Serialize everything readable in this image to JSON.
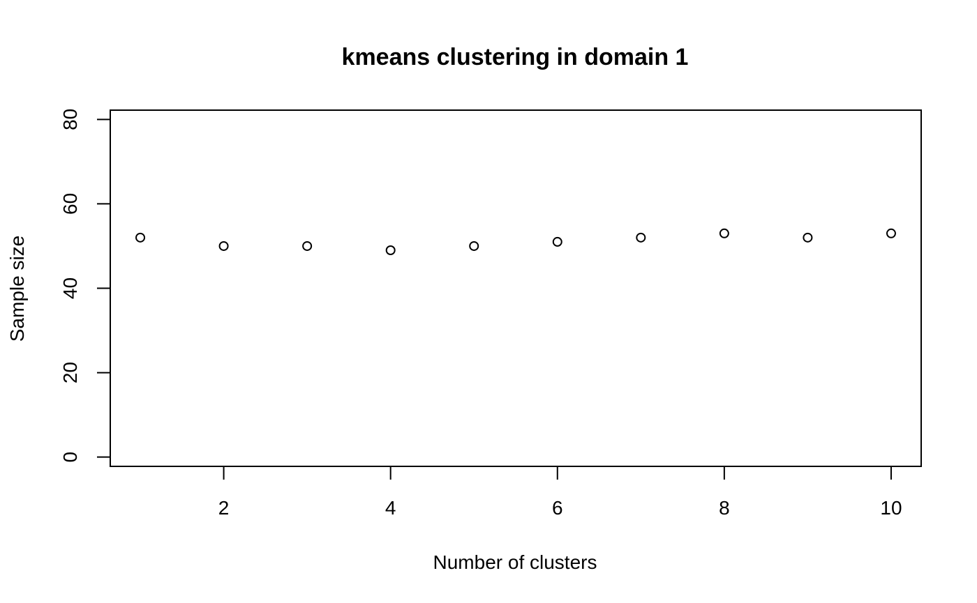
{
  "chart_data": {
    "type": "scatter",
    "title": "kmeans clustering in domain 1",
    "xlabel": "Number of clusters",
    "ylabel": "Sample size",
    "x": [
      1,
      2,
      3,
      4,
      5,
      6,
      7,
      8,
      9,
      10
    ],
    "y": [
      52,
      50,
      50,
      49,
      50,
      51,
      52,
      53,
      52,
      53
    ],
    "xlim": [
      0.64,
      10.36
    ],
    "ylim": [
      -2.2,
      82.2
    ],
    "xticks": [
      2,
      4,
      6,
      8,
      10
    ],
    "yticks": [
      0,
      20,
      40,
      60,
      80
    ],
    "grid": false,
    "point_style": "open-circle",
    "colors": {
      "background": "#ffffff",
      "foreground": "#000000"
    }
  }
}
